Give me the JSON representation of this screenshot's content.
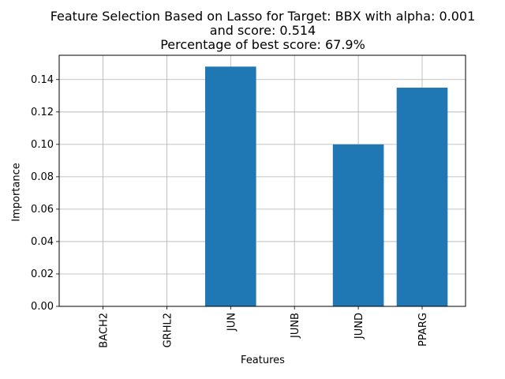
{
  "chart_data": {
    "type": "bar",
    "title_lines": [
      "Feature Selection Based on Lasso for Target: BBX with alpha: 0.001",
      "and score: 0.514",
      "Percentage of best score: 67.9%"
    ],
    "xlabel": "Features",
    "ylabel": "Importance",
    "categories": [
      "BACH2",
      "GRHL2",
      "JUN",
      "JUNB",
      "JUND",
      "PPARG"
    ],
    "values": [
      0.0,
      0.0,
      0.148,
      0.0,
      0.1,
      0.135
    ],
    "ylim": [
      0,
      0.155
    ],
    "yticks": [
      "0.00",
      "0.02",
      "0.04",
      "0.06",
      "0.08",
      "0.10",
      "0.12",
      "0.14"
    ],
    "grid": true,
    "bar_color": "#1f77b4"
  }
}
